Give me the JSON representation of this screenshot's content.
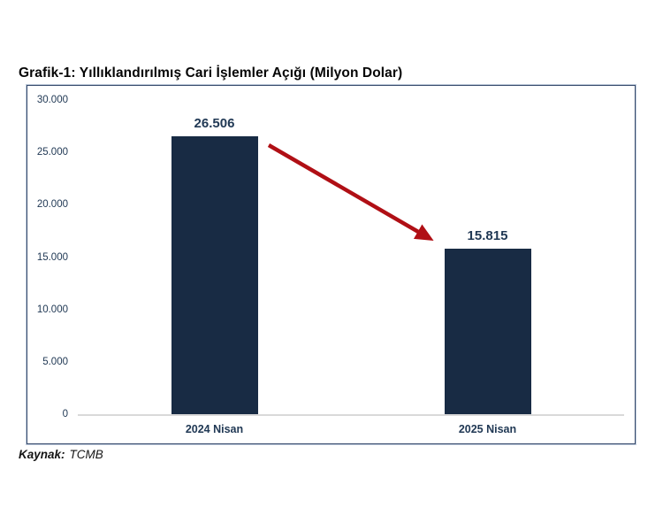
{
  "title": "Grafik-1: Yıllıklandırılmış Cari İşlemler Açığı (Milyon Dolar)",
  "source": {
    "label": "Kaynak:",
    "value": "TCMB"
  },
  "chart_data": {
    "type": "bar",
    "title": "Grafik-1: Yıllıklandırılmış Cari İşlemler Açığı (Milyon Dolar)",
    "categories": [
      "2024 Nisan",
      "2025 Nisan"
    ],
    "values": [
      26506,
      15815
    ],
    "value_labels": [
      "26.506",
      "15.815"
    ],
    "xlabel": "",
    "ylabel": "",
    "ylim": [
      0,
      30000
    ],
    "ytick_values": [
      0,
      5000,
      10000,
      15000,
      20000,
      25000,
      30000
    ],
    "ytick_labels": [
      "0",
      "5.000",
      "10.000",
      "15.000",
      "20.000",
      "25.000",
      "30.000"
    ],
    "grid": false,
    "legend": "none",
    "annotation": {
      "type": "arrow",
      "from_category": "2024 Nisan",
      "to_category": "2025 Nisan",
      "meaning": "decline"
    }
  },
  "colors": {
    "bar": "#182B44",
    "axis_text": "#213955",
    "arrow": "#B00F15",
    "frame_border": "#35496B",
    "baseline": "#D9D9D9",
    "title_text": "#050505"
  }
}
